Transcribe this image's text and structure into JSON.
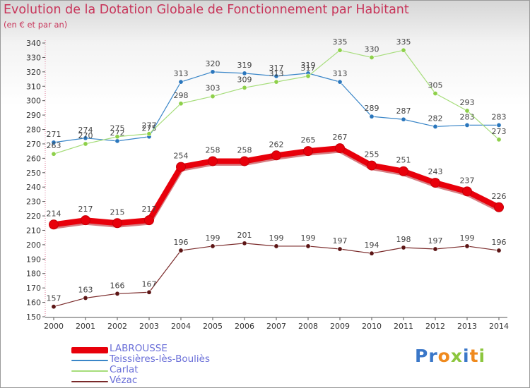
{
  "header": {
    "title": "Evolution de la Dotation Globale de Fonctionnement par Habitant",
    "subtitle": "(en € et par an)"
  },
  "logo": {
    "text": "Proxiti",
    "letters": [
      {
        "ch": "P",
        "color": "#3a77c8"
      },
      {
        "ch": "r",
        "color": "#3a77c8"
      },
      {
        "ch": "o",
        "color": "#ef8a1e"
      },
      {
        "ch": "x",
        "color": "#8cc63e"
      },
      {
        "ch": "i",
        "color": "#3a77c8"
      },
      {
        "ch": "t",
        "color": "#ef8a1e"
      },
      {
        "ch": "i",
        "color": "#8cc63e"
      }
    ]
  },
  "chart_data": {
    "type": "line",
    "title": "Evolution de la Dotation Globale de Fonctionnement par Habitant",
    "subtitle": "(en € et par an)",
    "x": [
      "2000",
      "2001",
      "2002",
      "2003",
      "2004",
      "2005",
      "2006",
      "2007",
      "2008",
      "2009",
      "2010",
      "2011",
      "2012",
      "2013",
      "2014"
    ],
    "ylim": [
      150,
      340
    ],
    "ytick_step": 10,
    "grid": false,
    "legend_position": "bottom-left",
    "series": [
      {
        "name": "LABROUSSE",
        "color": "#e8000b",
        "emphasis": true,
        "values": [
          214,
          217,
          215,
          217,
          254,
          258,
          258,
          262,
          265,
          267,
          255,
          251,
          243,
          237,
          226
        ]
      },
      {
        "name": "Teissières-lès-Bouliès",
        "color": "#3a86c8",
        "point_color": "#2a76bc",
        "values": [
          271,
          274,
          272,
          275,
          313,
          320,
          319,
          317,
          319,
          313,
          289,
          287,
          282,
          283,
          283
        ]
      },
      {
        "name": "Carlat",
        "color": "#a6dd7a",
        "point_color": "#8ed04a",
        "values": [
          263,
          270,
          275,
          277,
          298,
          303,
          309,
          313,
          317,
          335,
          330,
          335,
          305,
          293,
          273
        ]
      },
      {
        "name": "Vézac",
        "color": "#7a2a2a",
        "point_color": "#5c1515",
        "values": [
          157,
          163,
          166,
          167,
          196,
          199,
          201,
          199,
          199,
          197,
          194,
          198,
          197,
          199,
          196
        ]
      }
    ]
  }
}
